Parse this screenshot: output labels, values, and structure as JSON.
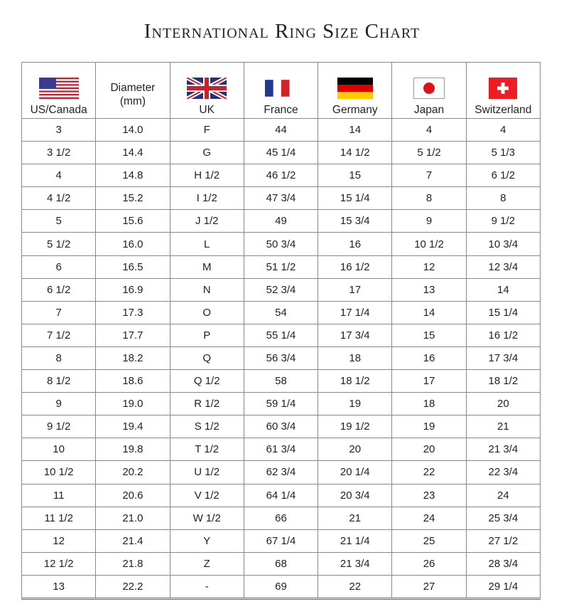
{
  "title": "International Ring Size Chart",
  "chart_data": {
    "type": "table",
    "title": "International Ring Size Chart",
    "columns": [
      {
        "label": "US/Canada",
        "flag": "us-flag-icon"
      },
      {
        "label": "Diameter (mm)",
        "flag": null
      },
      {
        "label": "UK",
        "flag": "uk-flag-icon"
      },
      {
        "label": "France",
        "flag": "france-flag-icon"
      },
      {
        "label": "Germany",
        "flag": "germany-flag-icon"
      },
      {
        "label": "Japan",
        "flag": "japan-flag-icon"
      },
      {
        "label": "Switzerland",
        "flag": "switzerland-flag-icon"
      }
    ],
    "rows": [
      [
        "3",
        "14.0",
        "F",
        "44",
        "14",
        "4",
        "4"
      ],
      [
        "3 1/2",
        "14.4",
        "G",
        "45 1/4",
        "14 1/2",
        "5 1/2",
        "5 1/3"
      ],
      [
        "4",
        "14.8",
        "H 1/2",
        "46 1/2",
        "15",
        "7",
        "6 1/2"
      ],
      [
        "4 1/2",
        "15.2",
        "I 1/2",
        "47 3/4",
        "15 1/4",
        "8",
        "8"
      ],
      [
        "5",
        "15.6",
        "J 1/2",
        "49",
        "15 3/4",
        "9",
        "9 1/2"
      ],
      [
        "5 1/2",
        "16.0",
        "L",
        "50 3/4",
        "16",
        "10 1/2",
        "10 3/4"
      ],
      [
        "6",
        "16.5",
        "M",
        "51 1/2",
        "16 1/2",
        "12",
        "12 3/4"
      ],
      [
        "6 1/2",
        "16.9",
        "N",
        "52 3/4",
        "17",
        "13",
        "14"
      ],
      [
        "7",
        "17.3",
        "O",
        "54",
        "17 1/4",
        "14",
        "15 1/4"
      ],
      [
        "7 1/2",
        "17.7",
        "P",
        "55 1/4",
        "17 3/4",
        "15",
        "16 1/2"
      ],
      [
        "8",
        "18.2",
        "Q",
        "56 3/4",
        "18",
        "16",
        "17 3/4"
      ],
      [
        "8 1/2",
        "18.6",
        "Q 1/2",
        "58",
        "18 1/2",
        "17",
        "18 1/2"
      ],
      [
        "9",
        "19.0",
        "R 1/2",
        "59 1/4",
        "19",
        "18",
        "20"
      ],
      [
        "9 1/2",
        "19.4",
        "S 1/2",
        "60 3/4",
        "19 1/2",
        "19",
        "21"
      ],
      [
        "10",
        "19.8",
        "T 1/2",
        "61 3/4",
        "20",
        "20",
        "21 3/4"
      ],
      [
        "10 1/2",
        "20.2",
        "U 1/2",
        "62 3/4",
        "20 1/4",
        "22",
        "22 3/4"
      ],
      [
        "11",
        "20.6",
        "V 1/2",
        "64 1/4",
        "20 3/4",
        "23",
        "24"
      ],
      [
        "11 1/2",
        "21.0",
        "W 1/2",
        "66",
        "21",
        "24",
        "25 3/4"
      ],
      [
        "12",
        "21.4",
        "Y",
        "67 1/4",
        "21 1/4",
        "25",
        "27 1/2"
      ],
      [
        "12 1/2",
        "21.8",
        "Z",
        "68",
        "21 3/4",
        "26",
        "28 3/4"
      ],
      [
        "13",
        "22.2",
        "-",
        "69",
        "22",
        "27",
        "29 1/4"
      ]
    ]
  }
}
